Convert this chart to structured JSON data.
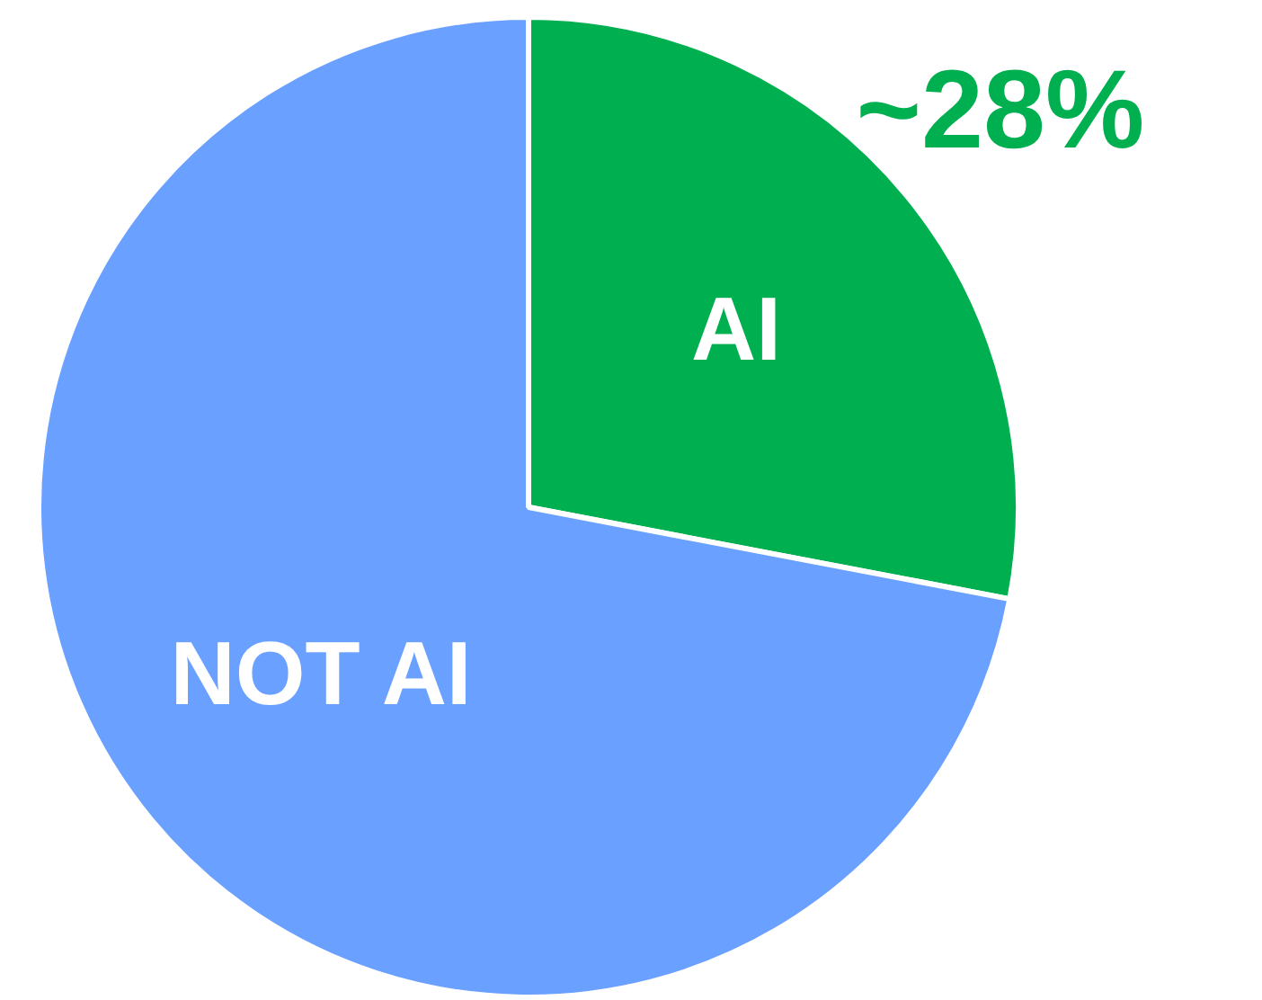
{
  "chart_data": {
    "type": "pie",
    "categories": [
      "AI",
      "NOT AI"
    ],
    "values": [
      28,
      72
    ],
    "colors": [
      "#00b050",
      "#6aa0ff"
    ],
    "value_labels": [
      "~28%",
      null
    ],
    "legend": false
  }
}
